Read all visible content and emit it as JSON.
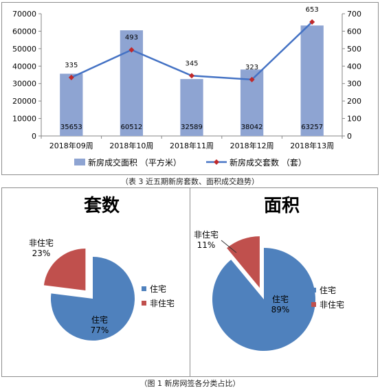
{
  "captions": {
    "top": "（表 3 近五期新房套数、面积成交趋势）",
    "bottom": "（图 1 新房网签各分类占比）"
  },
  "colors": {
    "bar": "#8EA4D2",
    "line": "#4472C4",
    "marker": "#C0292A",
    "pie_residential": "#4F81BD",
    "pie_other": "#C0504D"
  },
  "chart_data": [
    {
      "type": "bar",
      "title": "",
      "categories": [
        "2018年09周",
        "2018年10周",
        "2018年11周",
        "2018年12周",
        "2018年13周"
      ],
      "series": [
        {
          "name": "新房成交面积 （平方米）",
          "type": "bar",
          "axis": "left",
          "values": [
            35653,
            60512,
            32589,
            38042,
            63257
          ]
        },
        {
          "name": "新房成交套数 （套）",
          "type": "line",
          "axis": "right",
          "values": [
            335,
            493,
            345,
            323,
            653
          ]
        }
      ],
      "ylim": [
        0,
        70000
      ],
      "yticks": [
        "0",
        "10000",
        "20000",
        "30000",
        "40000",
        "50000",
        "60000",
        "70000"
      ],
      "y2lim": [
        0,
        700
      ],
      "y2ticks": [
        "0",
        "100",
        "200",
        "300",
        "400",
        "500",
        "600",
        "700"
      ],
      "grid": false,
      "legend": "bottom"
    },
    {
      "type": "pie",
      "title": "套数",
      "labels": [
        "住宅",
        "非住宅"
      ],
      "values": [
        77,
        23
      ],
      "value_labels": [
        "77%",
        "23%"
      ],
      "exploded": "非住宅",
      "legend": "right"
    },
    {
      "type": "pie",
      "title": "面积",
      "labels": [
        "住宅",
        "非住宅"
      ],
      "values": [
        89,
        11
      ],
      "value_labels": [
        "89%",
        "11%"
      ],
      "exploded": "非住宅",
      "legend": "right"
    }
  ]
}
